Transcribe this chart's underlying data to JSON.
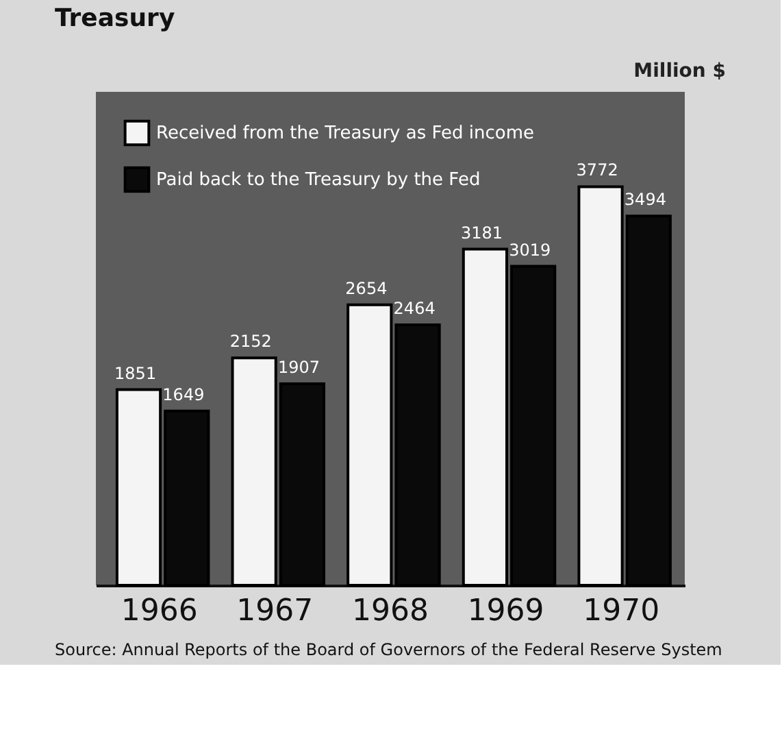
{
  "chart_data": {
    "type": "bar",
    "title": "Treasury",
    "ylabel": "Million $",
    "categories": [
      "1966",
      "1967",
      "1968",
      "1969",
      "1970"
    ],
    "series": [
      {
        "name": "Received from the Treasury as Fed income",
        "color": "#f4f4f4",
        "values": [
          1851,
          2152,
          2654,
          3181,
          3772
        ]
      },
      {
        "name": "Paid back to the Treasury by the Fed",
        "color": "#0a0a0a",
        "values": [
          1649,
          1907,
          2464,
          3019,
          3494
        ]
      }
    ],
    "ylim": [
      0,
      4670
    ],
    "data_labels": true,
    "legend": "top left",
    "tick_labels": "x",
    "annotations": [
      "Source: Annual Reports of the Board of Governors of the Federal Reserve System"
    ]
  }
}
